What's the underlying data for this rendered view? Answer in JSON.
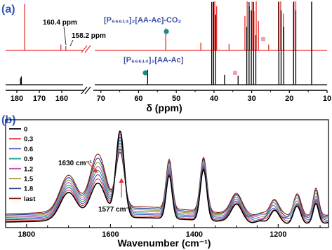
{
  "panels": {
    "a": {
      "letter": "(a)",
      "letter_color": "#2f56b8",
      "xlabel": "δ (ppm)",
      "left_ticks": [
        "180",
        "170",
        "160"
      ],
      "right_ticks": [
        "70",
        "60",
        "50",
        "40",
        "30",
        "20",
        "10"
      ],
      "annotations": {
        "peak1": "160.4 ppm",
        "peak2": "158.2 ppm",
        "compound_top": "[P₆₆₆₁₄]₂[AA-Ac]-CO₂",
        "compound_bottom": "[P₆₆₆₁₄]₂[AA-Ac]"
      },
      "markers": {
        "circle_color": "#1a8c86",
        "square_color": "#f4a0b4"
      }
    },
    "b": {
      "letter": "(b)",
      "letter_color": "#2f56b8",
      "xlabel": "Wavenumber (cm⁻¹)",
      "ticks": [
        "1800",
        "1600",
        "1400",
        "1200"
      ],
      "annotations": {
        "band1": "1630 cm⁻¹",
        "band2": "1577 cm⁻¹"
      },
      "arrow_color": "#e8352e"
    }
  },
  "chart_data": [
    {
      "type": "line",
      "panel": "a",
      "xlabel": "δ (ppm)",
      "xlim": [
        185,
        10
      ],
      "axis_break": [
        150,
        72
      ],
      "x_ticks": [
        180,
        170,
        160,
        70,
        60,
        50,
        40,
        30,
        20,
        10
      ],
      "series": [
        {
          "name": "[P₆₆₆₁₄]₂[AA-Ac]-CO₂",
          "color": "#e8302c",
          "peaks": [
            {
              "x": 176.5,
              "h": 0.95
            },
            {
              "x": 160.4,
              "h": 0.12
            },
            {
              "x": 158.2,
              "h": 0.09
            },
            {
              "x": 52.8,
              "h": 0.45
            },
            {
              "x": 43.5,
              "h": 0.16
            },
            {
              "x": 40.2,
              "h": 1.0
            },
            {
              "x": 39.8,
              "h": 1.0
            },
            {
              "x": 39.3,
              "h": 0.9
            },
            {
              "x": 36.0,
              "h": 0.13
            },
            {
              "x": 31.8,
              "h": 0.7
            },
            {
              "x": 31.2,
              "h": 1.0
            },
            {
              "x": 30.6,
              "h": 0.9
            },
            {
              "x": 29.9,
              "h": 1.0
            },
            {
              "x": 29.4,
              "h": 0.8
            },
            {
              "x": 28.8,
              "h": 1.0
            },
            {
              "x": 28.2,
              "h": 0.6
            },
            {
              "x": 25.5,
              "h": 0.12
            },
            {
              "x": 22.9,
              "h": 1.0
            },
            {
              "x": 22.3,
              "h": 1.0
            },
            {
              "x": 21.6,
              "h": 0.75
            },
            {
              "x": 18.8,
              "h": 1.0
            },
            {
              "x": 18.3,
              "h": 1.0
            },
            {
              "x": 14.1,
              "h": 1.0
            }
          ]
        },
        {
          "name": "[P₆₆₆₁₄]₂[AA-Ac]",
          "color": "#000000",
          "peaks": [
            {
              "x": 178.4,
              "h": 0.08
            },
            {
              "x": 178.0,
              "h": 0.1
            },
            {
              "x": 57.6,
              "h": 0.18
            },
            {
              "x": 40.6,
              "h": 1.0
            },
            {
              "x": 40.1,
              "h": 1.0
            },
            {
              "x": 39.6,
              "h": 0.85
            },
            {
              "x": 37.2,
              "h": 0.12
            },
            {
              "x": 33.6,
              "h": 0.11
            },
            {
              "x": 31.3,
              "h": 0.7
            },
            {
              "x": 30.7,
              "h": 1.0
            },
            {
              "x": 30.1,
              "h": 0.9
            },
            {
              "x": 29.5,
              "h": 1.0
            },
            {
              "x": 28.9,
              "h": 0.6
            },
            {
              "x": 22.8,
              "h": 1.0
            },
            {
              "x": 22.2,
              "h": 0.9
            },
            {
              "x": 21.5,
              "h": 0.7
            },
            {
              "x": 18.9,
              "h": 1.0
            },
            {
              "x": 18.3,
              "h": 0.9
            },
            {
              "x": 14.1,
              "h": 1.0
            }
          ]
        }
      ]
    },
    {
      "type": "line",
      "panel": "b",
      "xlabel": "Wavenumber (cm⁻¹)",
      "xlim": [
        1850,
        1080
      ],
      "x_ticks": [
        1800,
        1600,
        1400,
        1200
      ],
      "ylim": [
        0,
        1
      ],
      "series": [
        {
          "name": "0",
          "color": "#000000"
        },
        {
          "name": "0.3",
          "color": "#e8302c"
        },
        {
          "name": "0.6",
          "color": "#3d55c8"
        },
        {
          "name": "0.9",
          "color": "#1f9c8c"
        },
        {
          "name": "1.2",
          "color": "#c34fc0"
        },
        {
          "name": "1.5",
          "color": "#9aa23a"
        },
        {
          "name": "1.8",
          "color": "#223a8a"
        },
        {
          "name": "last",
          "color": "#8a1a1a"
        }
      ],
      "bands": [
        {
          "x": 1577,
          "height_first": 0.88,
          "height_last": 0.55,
          "width": 14
        },
        {
          "x": 1630,
          "height_first": 0.36,
          "height_last": 0.55,
          "width": 26
        },
        {
          "x": 1700,
          "height_first": 0.28,
          "height_last": 0.36,
          "width": 28
        },
        {
          "x": 1460,
          "height_first": 0.44,
          "height_last": 0.5,
          "width": 10
        },
        {
          "x": 1378,
          "height_first": 0.52,
          "height_last": 0.55,
          "width": 11
        },
        {
          "x": 1300,
          "height_first": 0.18,
          "height_last": 0.21,
          "width": 18
        },
        {
          "x": 1210,
          "height_first": 0.12,
          "height_last": 0.16,
          "width": 14
        },
        {
          "x": 1155,
          "height_first": 0.15,
          "height_last": 0.2,
          "width": 12
        },
        {
          "x": 1110,
          "height_first": 0.18,
          "height_last": 0.26,
          "width": 9
        }
      ],
      "baseline_first": 0.04,
      "baseline_last": 0.12
    }
  ]
}
